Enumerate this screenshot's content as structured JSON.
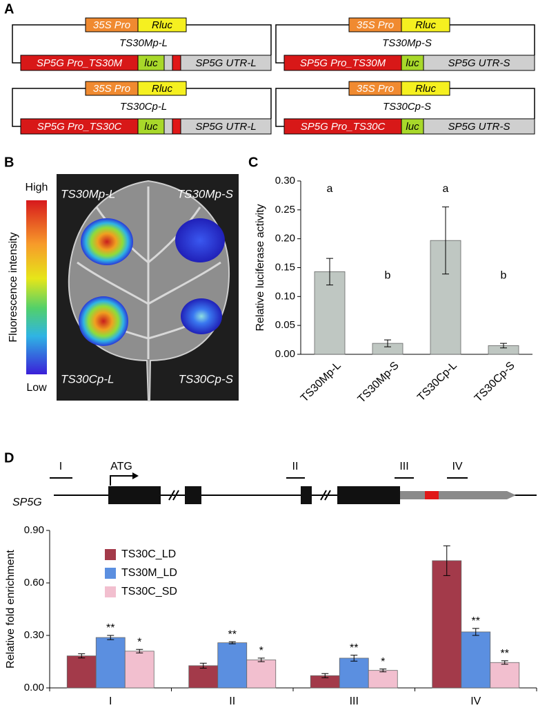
{
  "panel_labels": [
    "A",
    "B",
    "C",
    "D"
  ],
  "constructs": [
    {
      "promoter_35s": "35S Pro",
      "rluc": "Rluc",
      "name": "TS30Mp-L",
      "promoter": "SP5G Pro_TS30M",
      "luc": "luc",
      "utr": "SP5G UTR-L"
    },
    {
      "promoter_35s": "35S Pro",
      "rluc": "Rluc",
      "name": "TS30Mp-S",
      "promoter": "SP5G Pro_TS30M",
      "luc": "luc",
      "utr": "SP5G UTR-S"
    },
    {
      "promoter_35s": "35S Pro",
      "rluc": "Rluc",
      "name": "TS30Cp-L",
      "promoter": "SP5G Pro_TS30C",
      "luc": "luc",
      "utr": "SP5G UTR-L"
    },
    {
      "promoter_35s": "35S Pro",
      "rluc": "Rluc",
      "name": "TS30Cp-S",
      "promoter": "SP5G Pro_TS30C",
      "luc": "luc",
      "utr": "SP5G UTR-S"
    }
  ],
  "leaf_image": {
    "colorbar_high": "High",
    "colorbar_low": "Low",
    "colorbar_label": "Fluorescence intensity",
    "labels": [
      "TS30Mp-L",
      "TS30Mp-S",
      "TS30Cp-L",
      "TS30Cp-S"
    ]
  },
  "gene_diagram": {
    "gene": "SP5G",
    "start_codon": "ATG",
    "regions": [
      "I",
      "II",
      "III",
      "IV"
    ]
  },
  "chart_data": [
    {
      "type": "bar",
      "ylabel": "Relative luciferase activity",
      "categories": [
        "TS30Mp-L",
        "TS30Mp-S",
        "TS30Cp-L",
        "TS30Cp-S"
      ],
      "values": [
        0.143,
        0.019,
        0.197,
        0.015
      ],
      "errors": [
        0.023,
        0.006,
        0.058,
        0.004
      ],
      "annotations": [
        "a",
        "b",
        "a",
        "b"
      ],
      "color": "#bfc7c2",
      "ylim": [
        0,
        0.3
      ],
      "yticks": [
        {
          "value": 0,
          "label": "0.00"
        },
        {
          "value": 0.05,
          "label": "0.05"
        },
        {
          "value": 0.1,
          "label": "0.10"
        },
        {
          "value": 0.15,
          "label": "0.15"
        },
        {
          "value": 0.2,
          "label": "0.20"
        },
        {
          "value": 0.25,
          "label": "0.25"
        },
        {
          "value": 0.3,
          "label": "0.30"
        }
      ]
    },
    {
      "type": "bar",
      "ylabel": "Relative fold enrichment",
      "categories": [
        "I",
        "II",
        "III",
        "IV"
      ],
      "series": [
        {
          "name": "TS30C_LD",
          "color": "#a33a4a",
          "values": [
            0.183,
            0.127,
            0.07,
            0.727
          ],
          "errors": [
            0.012,
            0.014,
            0.012,
            0.085
          ]
        },
        {
          "name": "TS30M_LD",
          "color": "#5b8fe0",
          "values": [
            0.288,
            0.258,
            0.17,
            0.32
          ],
          "errors": [
            0.012,
            0.006,
            0.017,
            0.02
          ],
          "annotations": [
            "**",
            "**",
            "**",
            "**"
          ]
        },
        {
          "name": "TS30C_SD",
          "color": "#f2bfcf",
          "values": [
            0.21,
            0.16,
            0.1,
            0.145
          ],
          "errors": [
            0.01,
            0.01,
            0.008,
            0.01
          ],
          "annotations": [
            "*",
            "*",
            "*",
            "**"
          ]
        }
      ],
      "legend": "upper left",
      "ylim": [
        0,
        0.9
      ],
      "yticks": [
        {
          "value": 0,
          "label": "0.00"
        },
        {
          "value": 0.3,
          "label": "0.30"
        },
        {
          "value": 0.6,
          "label": "0.60"
        },
        {
          "value": 0.9,
          "label": "0.90"
        }
      ]
    }
  ]
}
